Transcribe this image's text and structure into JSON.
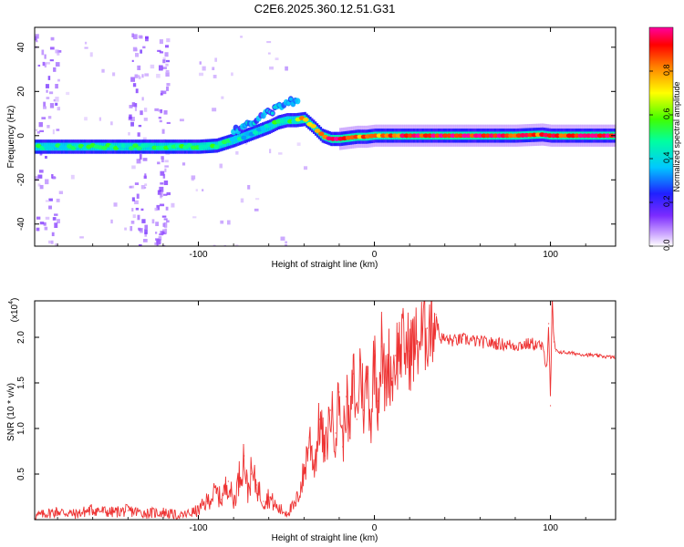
{
  "title": "C2E6.2025.360.12.51.G31",
  "colorbar": {
    "label": "Normalized spectral amplitude",
    "ticks": [
      "0.0",
      "0.2",
      "0.4",
      "0.6",
      "0.8"
    ],
    "tick_values": [
      0.0,
      0.2,
      0.4,
      0.6,
      0.8
    ],
    "range": [
      0,
      1
    ],
    "colors": [
      "#ffffff",
      "#c8a0ff",
      "#7b2bff",
      "#2020ff",
      "#00c8ff",
      "#00ffa0",
      "#40ff00",
      "#ffff00",
      "#ff8000",
      "#ff0000",
      "#ff00a0"
    ]
  },
  "chart_data": [
    {
      "type": "heatmap",
      "name": "spectrogram",
      "title": "C2E6.2025.360.12.51.G31",
      "xlabel": "Height of straight line (km)",
      "ylabel": "Frequency (Hz)",
      "xlim": [
        -193,
        137
      ],
      "ylim": [
        -50,
        49
      ],
      "x_ticks": [
        -100,
        0,
        100
      ],
      "x_tick_labels": [
        "-100",
        "0",
        "100"
      ],
      "y_ticks": [
        -40,
        -20,
        0,
        20,
        40
      ],
      "y_tick_labels": [
        "-40",
        "-20",
        "0",
        "20",
        "40"
      ],
      "ridge": {
        "x": [
          -193,
          -170,
          -150,
          -130,
          -110,
          -100,
          -90,
          -80,
          -70,
          -60,
          -55,
          -50,
          -45,
          -40,
          -35,
          -30,
          -25,
          -20,
          -15,
          -10,
          -5,
          0,
          5,
          10,
          20,
          30,
          50,
          80,
          95,
          100,
          137
        ],
        "y": [
          -5,
          -5,
          -5,
          -5,
          -5,
          -5,
          -4.5,
          -2,
          1,
          4,
          6,
          7,
          7,
          7.5,
          4,
          0,
          -1.5,
          -1.5,
          -1,
          -0.5,
          -0.5,
          0,
          0,
          0,
          0,
          0,
          0,
          0,
          0.5,
          0,
          0
        ],
        "amplitude": [
          0.45,
          0.45,
          0.5,
          0.45,
          0.5,
          0.55,
          0.5,
          0.45,
          0.4,
          0.45,
          0.5,
          0.45,
          0.5,
          0.85,
          0.7,
          0.8,
          0.9,
          0.95,
          0.9,
          0.85,
          0.8,
          0.85,
          0.8,
          0.85,
          0.9,
          0.95,
          0.95,
          0.9,
          0.85,
          0.9,
          0.95
        ]
      },
      "upper_branch": {
        "x": [
          -80,
          -70,
          -60,
          -50,
          -43
        ],
        "y": [
          2,
          6,
          10,
          14,
          17
        ]
      },
      "noise_bands_x": [
        [
          -193,
          -180
        ],
        [
          -140,
          -130
        ],
        [
          -125,
          -118
        ]
      ]
    },
    {
      "type": "line",
      "name": "snr",
      "xlabel": "Height of straight line (km)",
      "ylabel": "SNR (10 * v/v)",
      "multiplier": "(x10",
      "multiplier_exp": "4",
      "color": "#ee3333",
      "xlim": [
        -193,
        137
      ],
      "ylim": [
        0,
        24000
      ],
      "x_ticks": [
        -100,
        0,
        100
      ],
      "x_tick_labels": [
        "-100",
        "0",
        "100"
      ],
      "y_ticks": [
        5000,
        10000,
        15000,
        20000
      ],
      "y_tick_labels": [
        "0.5",
        "1.0",
        "1.5",
        "2.0"
      ],
      "series": [
        {
          "name": "SNR",
          "x": [
            -193,
            -180,
            -170,
            -160,
            -150,
            -140,
            -130,
            -120,
            -110,
            -100,
            -95,
            -90,
            -87,
            -83,
            -80,
            -77,
            -74,
            -72,
            -70,
            -67,
            -63,
            -60,
            -55,
            -50,
            -45,
            -40,
            -37,
            -34,
            -31,
            -28,
            -25,
            -22,
            -20,
            -18,
            -16,
            -14,
            -12,
            -10,
            -8,
            -6,
            -4,
            -2,
            0,
            2,
            4,
            6,
            8,
            10,
            12,
            15,
            20,
            25,
            30,
            35,
            37,
            40,
            45,
            50,
            60,
            70,
            80,
            90,
            95,
            98,
            99,
            100,
            101,
            102,
            103,
            105,
            110,
            120,
            130,
            137
          ],
          "y": [
            400,
            900,
            600,
            1100,
            800,
            1000,
            700,
            800,
            400,
            1000,
            2000,
            3000,
            2200,
            4200,
            1800,
            4500,
            7000,
            3000,
            5000,
            3800,
            2000,
            2500,
            1200,
            800,
            1500,
            5000,
            9000,
            6000,
            11000,
            7000,
            12000,
            9500,
            14000,
            8000,
            13500,
            9000,
            16000,
            11000,
            17500,
            12000,
            16000,
            10500,
            18500,
            13000,
            19000,
            14500,
            17500,
            15500,
            18000,
            19000,
            18500,
            19500,
            21000,
            22500,
            20000,
            19800,
            19600,
            19800,
            19500,
            19300,
            19100,
            19300,
            19000,
            17000,
            21500,
            12500,
            24000,
            19500,
            18500,
            18400,
            18300,
            18100,
            17900,
            17800
          ]
        }
      ]
    }
  ]
}
